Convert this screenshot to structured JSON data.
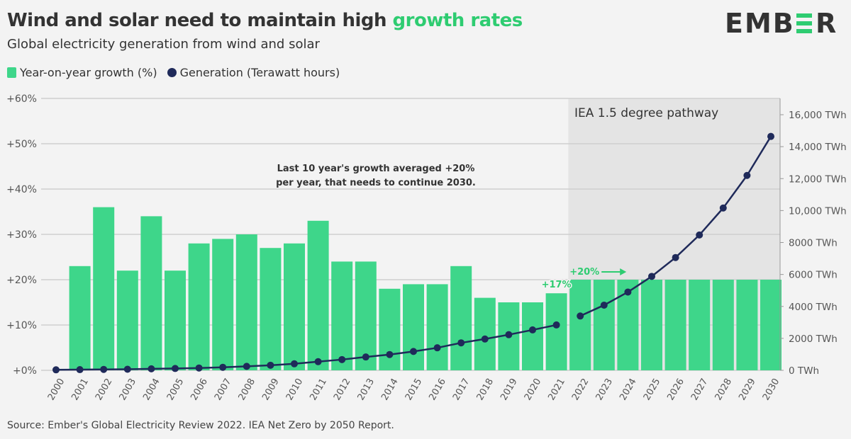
{
  "header": {
    "title_main": "Wind and solar need to maintain high ",
    "title_highlight": "growth rates",
    "subtitle": "Global electricity generation from wind and solar",
    "logo_text": "EMBER"
  },
  "source": "Source: Ember's Global Electricity Review 2022. IEA Net Zero by 2050 Report.",
  "colors": {
    "growth": "#3ed68a",
    "generation": "#1f2a5a",
    "highlight": "#2ecc71",
    "pathway_shade": "#e4e4e4",
    "background": "#f3f3f3"
  },
  "chart_data": {
    "type": "bar+line",
    "categories": [
      "2000",
      "2001",
      "2002",
      "2003",
      "2004",
      "2005",
      "2006",
      "2007",
      "2008",
      "2009",
      "2010",
      "2011",
      "2012",
      "2013",
      "2014",
      "2015",
      "2016",
      "2017",
      "2018",
      "2019",
      "2020",
      "2021",
      "2022",
      "2023",
      "2024",
      "2025",
      "2026",
      "2027",
      "2028",
      "2029",
      "2030"
    ],
    "series": [
      {
        "name": "Year-on-year growth (%)",
        "type": "bar",
        "axis": "left",
        "values": [
          null,
          23,
          36,
          22,
          34,
          22,
          28,
          29,
          30,
          27,
          28,
          33,
          24,
          24,
          18,
          19,
          19,
          23,
          16,
          15,
          15,
          17,
          20,
          20,
          20,
          20,
          20,
          20,
          20,
          20,
          20
        ]
      },
      {
        "name": "Generation (Terawatt hours)",
        "type": "line",
        "axis": "right",
        "values": [
          32,
          42,
          57,
          69,
          93,
          114,
          146,
          190,
          250,
          318,
          408,
          541,
          673,
          835,
          988,
          1180,
          1410,
          1720,
          1960,
          2230,
          2530,
          2840,
          3400,
          4080,
          4900,
          5880,
          7060,
          8470,
          10160,
          12200,
          14640
        ]
      }
    ],
    "left_axis": {
      "ylim": [
        0,
        60
      ],
      "ticks": [
        "+0%",
        "+10%",
        "+20%",
        "+30%",
        "+40%",
        "+50%",
        "+60%"
      ]
    },
    "right_axis": {
      "ylim": [
        0,
        16000
      ],
      "ticks": [
        "0 TWh",
        "2000 TWh",
        "4000 TWh",
        "6000 TWh",
        "8000 TWh",
        "10,000 TWh",
        "12,000 TWh",
        "14,000 TWh",
        "16,000 TWh"
      ]
    },
    "grid": true,
    "legend": "top-left",
    "annotations": {
      "pathway_label": "IEA 1.5 degree pathway",
      "pathway_start": "2022",
      "note_line1": "Last 10 year's growth averaged +20%",
      "note_line2": "per year, that needs to continue 2030.",
      "label_2021": "+17%",
      "label_2022": "+20%"
    }
  }
}
